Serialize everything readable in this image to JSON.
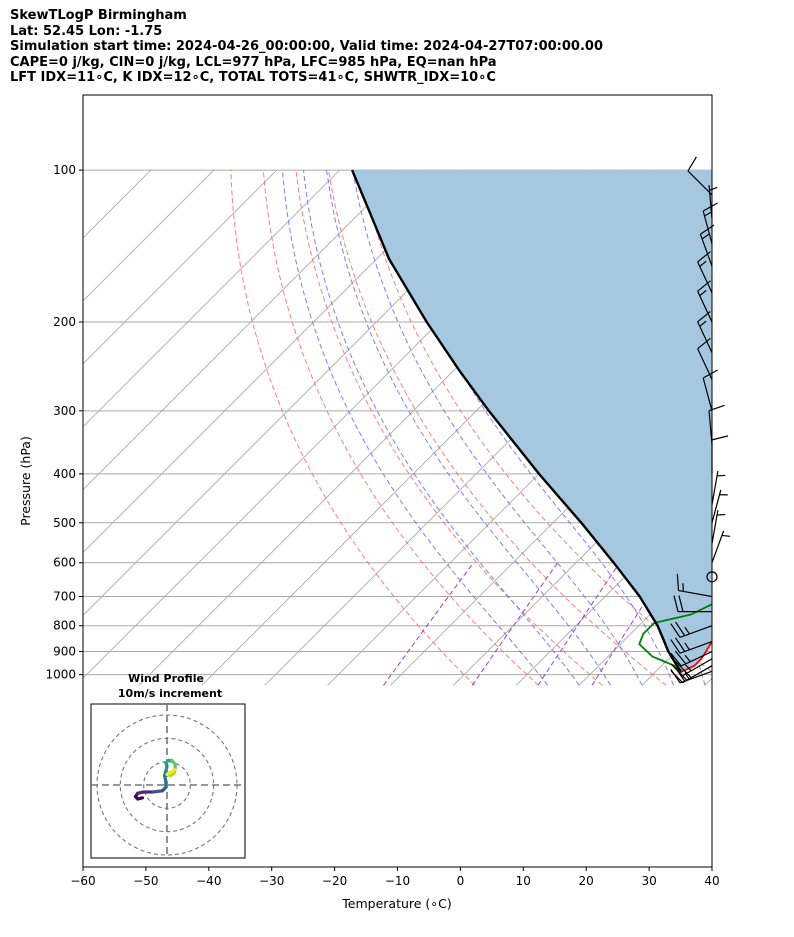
{
  "header": {
    "title": "SkewTLogP Birmingham",
    "location": "Lat: 52.45   Lon: -1.75",
    "times": "Simulation start time: 2024-04-26_00:00:00, Valid time: 2024-04-27T07:00:00.00",
    "indices1": "CAPE=0 j/kg, CIN=0 j/kg, LCL=977 hPa, LFC=985 hPa, EQ=nan hPa",
    "indices2": "LFT IDX=11∘C, K IDX=12∘C, TOTAL TOTS=41∘C, SHWTR_IDX=10∘C"
  },
  "chart_data": {
    "type": "skewt",
    "xlabel": "Temperature (∘C)",
    "ylabel": "Pressure (hPa)",
    "xlim": [
      -60,
      40
    ],
    "ylim": [
      1050,
      100
    ],
    "x_ticks": [
      -60,
      -50,
      -40,
      -30,
      -20,
      -10,
      0,
      10,
      20,
      30,
      40
    ],
    "y_ticks": [
      1000,
      900,
      800,
      700,
      600,
      500,
      400,
      300,
      200,
      100
    ],
    "grid": true,
    "colors": {
      "temperature": "#ff0000",
      "dewpoint": "#008000",
      "parcel": "#000000",
      "cape_fill": "#a5c7df",
      "dry_adiabat": "#ff6666",
      "moist_adiabat": "#6f6fff",
      "mixing_ratio": "#9b3fcf",
      "isotherm": "#aaaaaa"
    },
    "temperature_profile": [
      {
        "p": 990,
        "t": 4.0
      },
      {
        "p": 960,
        "t": 5.2
      },
      {
        "p": 930,
        "t": 5.2
      },
      {
        "p": 900,
        "t": 4.8
      },
      {
        "p": 850,
        "t": 4.0
      },
      {
        "p": 800,
        "t": 2.8
      },
      {
        "p": 750,
        "t": 2.0
      },
      {
        "p": 700,
        "t": 1.5
      },
      {
        "p": 650,
        "t": 0.0
      },
      {
        "p": 600,
        "t": -1.2
      },
      {
        "p": 550,
        "t": -3.8
      },
      {
        "p": 500,
        "t": -6.5
      },
      {
        "p": 450,
        "t": -9.5
      },
      {
        "p": 400,
        "t": -14.0
      },
      {
        "p": 350,
        "t": -20.0
      },
      {
        "p": 310,
        "t": -25.0
      },
      {
        "p": 300,
        "t": -23.0
      },
      {
        "p": 280,
        "t": -19.0
      },
      {
        "p": 250,
        "t": -13.5
      },
      {
        "p": 220,
        "t": -8.5
      },
      {
        "p": 200,
        "t": -5.0
      },
      {
        "p": 180,
        "t": -1.0
      },
      {
        "p": 160,
        "t": 2.0
      },
      {
        "p": 150,
        "t": 3.5
      },
      {
        "p": 140,
        "t": 6.0
      },
      {
        "p": 130,
        "t": 8.0
      },
      {
        "p": 120,
        "t": 9.5
      },
      {
        "p": 110,
        "t": 11.5
      },
      {
        "p": 100,
        "t": 13.5
      }
    ],
    "dewpoint_profile": [
      {
        "p": 990,
        "t": 3.8
      },
      {
        "p": 960,
        "t": 2.0
      },
      {
        "p": 920,
        "t": -3.0
      },
      {
        "p": 870,
        "t": -7.0
      },
      {
        "p": 830,
        "t": -8.0
      },
      {
        "p": 790,
        "t": -8.0
      },
      {
        "p": 760,
        "t": -3.5
      },
      {
        "p": 720,
        "t": -1.5
      },
      {
        "p": 680,
        "t": -2.5
      },
      {
        "p": 650,
        "t": -3.0
      },
      {
        "p": 600,
        "t": -4.5
      },
      {
        "p": 550,
        "t": -7.0
      },
      {
        "p": 500,
        "t": -9.0
      },
      {
        "p": 450,
        "t": -13.0
      },
      {
        "p": 400,
        "t": -17.0
      },
      {
        "p": 350,
        "t": -23.5
      },
      {
        "p": 310,
        "t": -29.0
      },
      {
        "p": 290,
        "t": -30.0
      },
      {
        "p": 270,
        "t": -31.0
      },
      {
        "p": 255,
        "t": -33.0
      },
      {
        "p": 235,
        "t": -30.0
      },
      {
        "p": 215,
        "t": -31.0
      },
      {
        "p": 200,
        "t": -33.5
      },
      {
        "p": 188,
        "t": -35.5
      },
      {
        "p": 170,
        "t": -33.0
      },
      {
        "p": 150,
        "t": -30.0
      },
      {
        "p": 130,
        "t": -27.0
      },
      {
        "p": 110,
        "t": -25.0
      },
      {
        "p": 100,
        "t": -24.0
      }
    ],
    "parcel_profile": [
      {
        "p": 985,
        "t": 4.0
      },
      {
        "p": 977,
        "t": 3.4
      },
      {
        "p": 900,
        "t": -1.2
      },
      {
        "p": 850,
        "t": -4.0
      },
      {
        "p": 800,
        "t": -7.0
      },
      {
        "p": 700,
        "t": -14.5
      },
      {
        "p": 600,
        "t": -24.0
      },
      {
        "p": 500,
        "t": -35.5
      },
      {
        "p": 400,
        "t": -50.0
      },
      {
        "p": 300,
        "t": -68.0
      },
      {
        "p": 250,
        "t": -79.0
      },
      {
        "p": 200,
        "t": -92.0
      },
      {
        "p": 150,
        "t": -108.0
      },
      {
        "p": 120,
        "t": -119.0
      },
      {
        "p": 100,
        "t": -128.0
      }
    ],
    "wind_barbs": [
      {
        "p": 985,
        "speed_kt": 25,
        "dir": 250
      },
      {
        "p": 960,
        "speed_kt": 25,
        "dir": 240
      },
      {
        "p": 930,
        "speed_kt": 25,
        "dir": 240
      },
      {
        "p": 900,
        "speed_kt": 25,
        "dir": 245
      },
      {
        "p": 860,
        "speed_kt": 25,
        "dir": 250
      },
      {
        "p": 800,
        "speed_kt": 25,
        "dir": 250
      },
      {
        "p": 750,
        "speed_kt": 20,
        "dir": 270
      },
      {
        "p": 700,
        "speed_kt": 15,
        "dir": 280
      },
      {
        "p": 640,
        "speed_kt": 0,
        "dir": 0
      },
      {
        "p": 600,
        "speed_kt": 5,
        "dir": 20
      },
      {
        "p": 550,
        "speed_kt": 5,
        "dir": 10
      },
      {
        "p": 500,
        "speed_kt": 5,
        "dir": 15
      },
      {
        "p": 460,
        "speed_kt": 5,
        "dir": 10
      },
      {
        "p": 400,
        "speed_kt": 10,
        "dir": 360
      },
      {
        "p": 350,
        "speed_kt": 10,
        "dir": 355
      },
      {
        "p": 300,
        "speed_kt": 10,
        "dir": 345
      },
      {
        "p": 260,
        "speed_kt": 10,
        "dir": 335
      },
      {
        "p": 230,
        "speed_kt": 15,
        "dir": 335
      },
      {
        "p": 200,
        "speed_kt": 15,
        "dir": 335
      },
      {
        "p": 175,
        "speed_kt": 15,
        "dir": 335
      },
      {
        "p": 155,
        "speed_kt": 15,
        "dir": 340
      },
      {
        "p": 140,
        "speed_kt": 15,
        "dir": 345
      },
      {
        "p": 125,
        "speed_kt": 5,
        "dir": 355
      },
      {
        "p": 112,
        "speed_kt": 10,
        "dir": 315
      }
    ],
    "hodograph": {
      "title": "Wind Profile",
      "subtitle": "10m/s increment",
      "ring_count": 3,
      "ring_step": 10,
      "range": 33,
      "colormap": "viridis",
      "points": [
        {
          "u": -10.5,
          "v": -5.5
        },
        {
          "u": -12.5,
          "v": -6.0
        },
        {
          "u": -13.5,
          "v": -5.0
        },
        {
          "u": -12.5,
          "v": -3.5
        },
        {
          "u": -10.0,
          "v": -3.0
        },
        {
          "u": -6.0,
          "v": -3.0
        },
        {
          "u": -2.0,
          "v": -2.5
        },
        {
          "u": -0.5,
          "v": -1.0
        },
        {
          "u": -0.5,
          "v": 1.5
        },
        {
          "u": -1.0,
          "v": 4.0
        },
        {
          "u": -0.5,
          "v": 6.0
        },
        {
          "u": 0.0,
          "v": 8.0
        },
        {
          "u": -0.5,
          "v": 9.5
        },
        {
          "u": 0.5,
          "v": 10.5
        },
        {
          "u": 2.0,
          "v": 10.5
        },
        {
          "u": 3.5,
          "v": 9.0
        },
        {
          "u": 3.5,
          "v": 7.0
        },
        {
          "u": 3.0,
          "v": 5.0
        },
        {
          "u": 1.5,
          "v": 4.0
        },
        {
          "u": 0.0,
          "v": 4.5
        },
        {
          "u": 1.5,
          "v": 5.5
        },
        {
          "u": 3.5,
          "v": 6.5
        }
      ]
    }
  }
}
